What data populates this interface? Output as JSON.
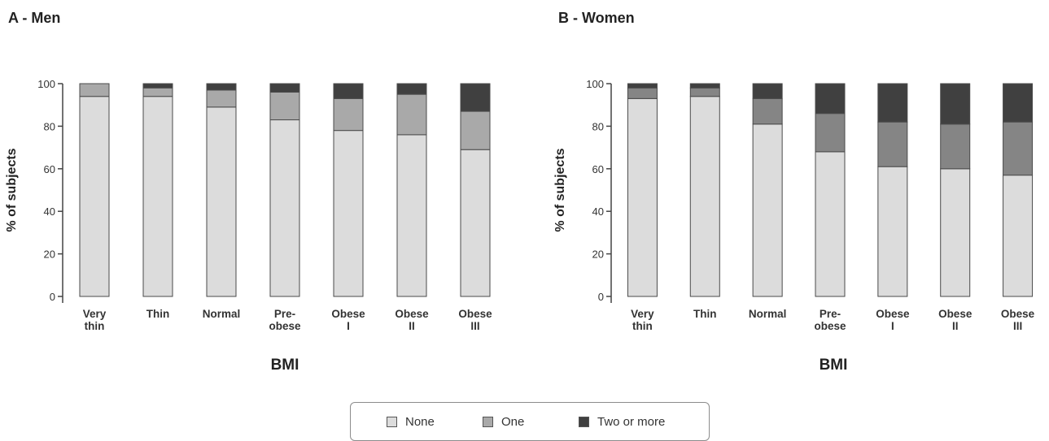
{
  "colors": {
    "none": "#dcdcdc",
    "one_men": "#a9a9a9",
    "one_women": "#858585",
    "two_or_more": "#404040",
    "axis": "#444444",
    "bar_outline": "#4a4a4a"
  },
  "legend": {
    "items": [
      {
        "label": "None",
        "color_key": "none"
      },
      {
        "label": "One",
        "color_key": "one_men"
      },
      {
        "label": "Two or more",
        "color_key": "two_or_more"
      }
    ],
    "placement": "bottom-center"
  },
  "chart_data": [
    {
      "type": "bar",
      "stacked": true,
      "title": "A - Men",
      "xlabel": "BMI",
      "ylabel": "% of subjects",
      "ylim": [
        0,
        100
      ],
      "yticks": [
        0,
        20,
        40,
        60,
        80,
        100
      ],
      "categories": [
        [
          "Very",
          "thin"
        ],
        [
          "Thin"
        ],
        [
          "Normal"
        ],
        [
          "Pre-",
          "obese"
        ],
        [
          "Obese",
          "I"
        ],
        [
          "Obese",
          "II"
        ],
        [
          "Obese",
          "III"
        ]
      ],
      "series": [
        {
          "name": "None",
          "color_key": "none",
          "values": [
            94,
            94,
            89,
            83,
            78,
            76,
            69
          ]
        },
        {
          "name": "One",
          "color_key": "one_men",
          "values": [
            6,
            4,
            8,
            13,
            15,
            19,
            18
          ]
        },
        {
          "name": "Two or more",
          "color_key": "two_or_more",
          "values": [
            0,
            2,
            3,
            4,
            7,
            5,
            13
          ]
        }
      ],
      "grid": false
    },
    {
      "type": "bar",
      "stacked": true,
      "title": "B - Women",
      "xlabel": "BMI",
      "ylabel": "% of subjects",
      "ylim": [
        0,
        100
      ],
      "yticks": [
        0,
        20,
        40,
        60,
        80,
        100
      ],
      "categories": [
        [
          "Very",
          "thin"
        ],
        [
          "Thin"
        ],
        [
          "Normal"
        ],
        [
          "Pre-",
          "obese"
        ],
        [
          "Obese",
          "I"
        ],
        [
          "Obese",
          "II"
        ],
        [
          "Obese",
          "III"
        ]
      ],
      "series": [
        {
          "name": "None",
          "color_key": "none",
          "values": [
            93,
            94,
            81,
            68,
            61,
            60,
            57
          ]
        },
        {
          "name": "One",
          "color_key": "one_women",
          "values": [
            5,
            4,
            12,
            18,
            21,
            21,
            25
          ]
        },
        {
          "name": "Two or more",
          "color_key": "two_or_more",
          "values": [
            2,
            2,
            7,
            14,
            18,
            19,
            18
          ]
        }
      ],
      "grid": false
    }
  ]
}
